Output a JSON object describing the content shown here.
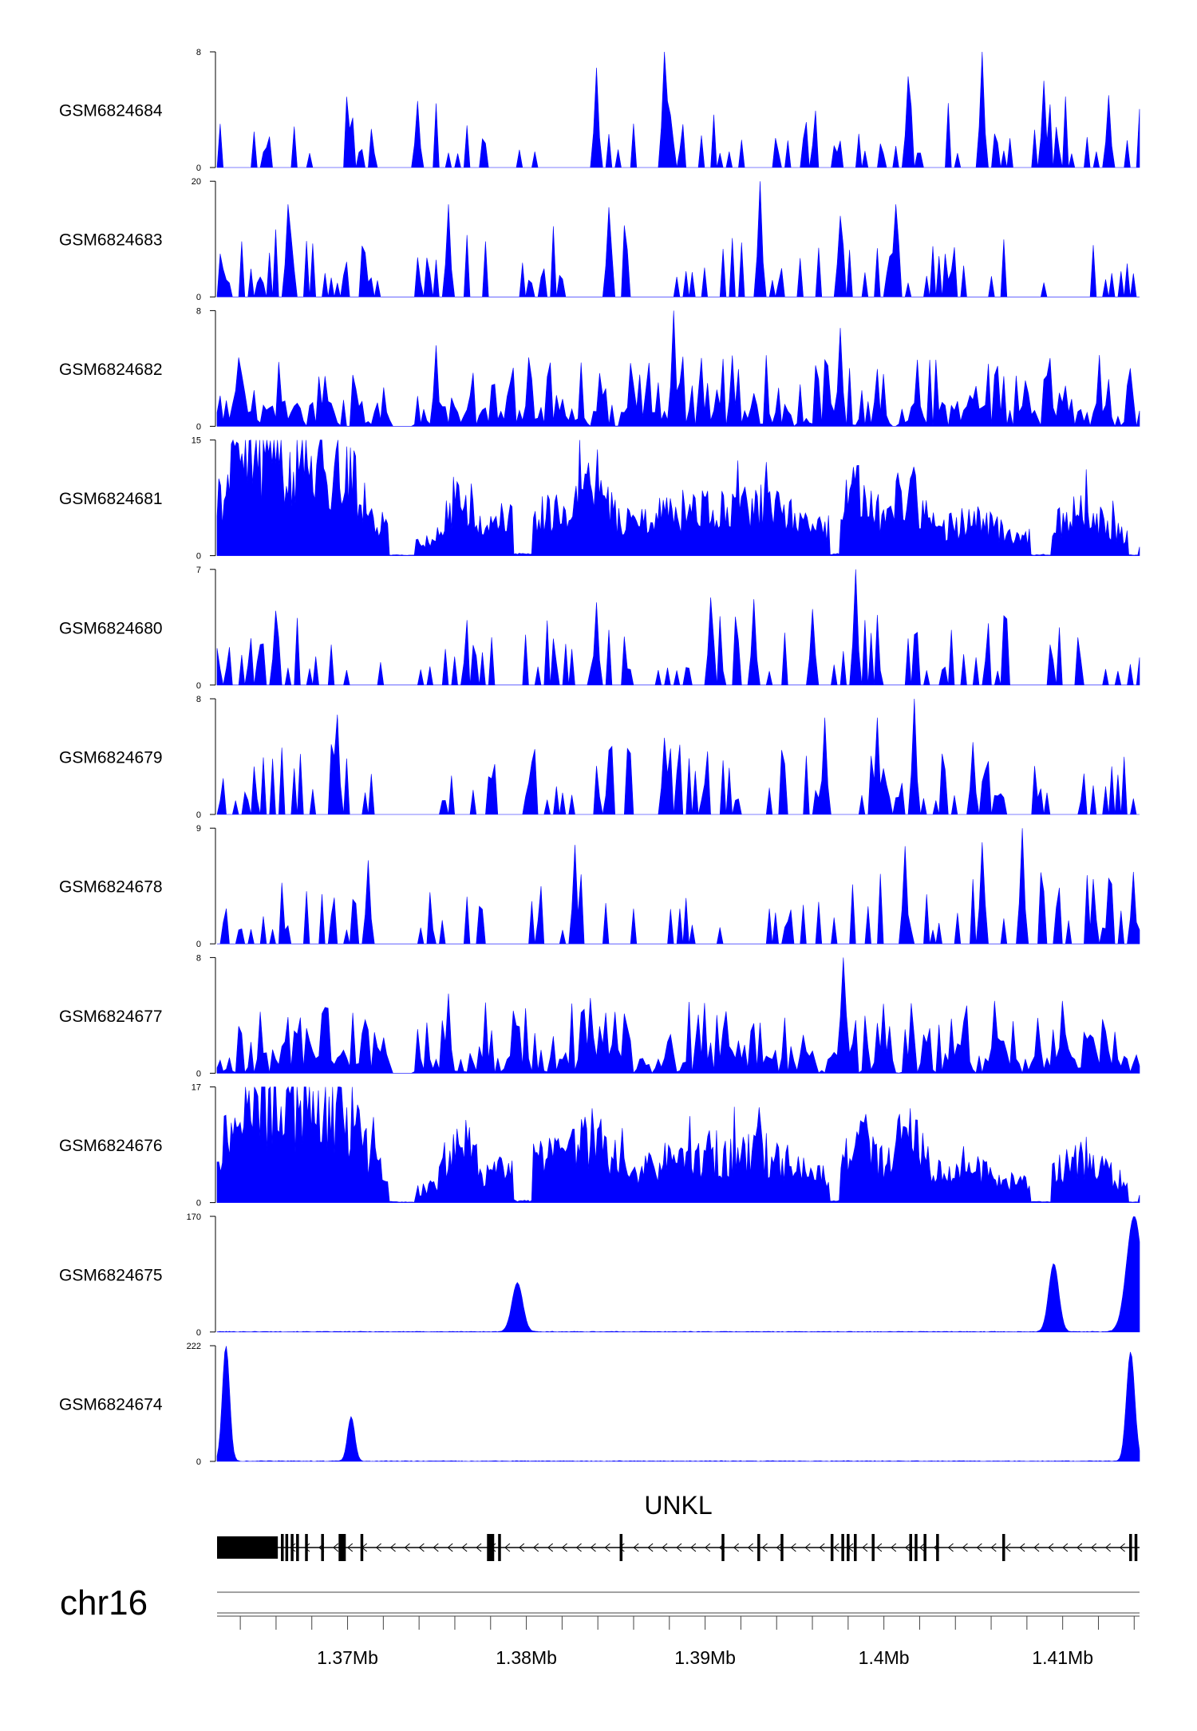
{
  "chart_data": {
    "type": "area",
    "x_range": [
      1362700,
      1414300
    ],
    "tracks": [
      {
        "name": "GSM6824684",
        "ylim": [
          0,
          8
        ],
        "ymax_label": "8",
        "ymin_label": "0",
        "profile": "sparse",
        "seed": 11,
        "peaks": [
          [
            1374000,
            4.6
          ],
          [
            1384000,
            6.9
          ],
          [
            1387700,
            8.0
          ],
          [
            1401300,
            6.3
          ],
          [
            1405500,
            8.0
          ],
          [
            1409000,
            6.0
          ],
          [
            1412600,
            5.0
          ]
        ]
      },
      {
        "name": "GSM6824683",
        "ylim": [
          0,
          20
        ],
        "ymax_label": "20",
        "ymin_label": "0",
        "profile": "sparse",
        "seed": 23,
        "peaks": [
          [
            1366700,
            16.0
          ],
          [
            1375600,
            16.0
          ],
          [
            1384700,
            15.5
          ],
          [
            1393100,
            20.0
          ],
          [
            1397500,
            14.0
          ],
          [
            1400700,
            16.0
          ]
        ]
      },
      {
        "name": "GSM6824682",
        "ylim": [
          0,
          8
        ],
        "ymax_label": "8",
        "ymin_label": "0",
        "profile": "dense",
        "seed": 37,
        "peaks": [
          [
            1375000,
            5.6
          ],
          [
            1388300,
            8.0
          ],
          [
            1391500,
            4.9
          ],
          [
            1397600,
            6.8
          ],
          [
            1401800,
            4.6
          ]
        ]
      },
      {
        "name": "GSM6824681",
        "ylim": [
          0,
          15
        ],
        "ymax_label": "15",
        "ymin_label": "0",
        "profile": "broad",
        "seed": 41,
        "peaks": [
          [
            1365900,
            15.0
          ],
          [
            1364000,
            12.0
          ],
          [
            1369500,
            11.0
          ],
          [
            1384200,
            9.8
          ],
          [
            1398300,
            9.3
          ],
          [
            1401500,
            10.0
          ]
        ]
      },
      {
        "name": "GSM6824680",
        "ylim": [
          0,
          7
        ],
        "ymax_label": "7",
        "ymin_label": "0",
        "profile": "sparse",
        "seed": 53,
        "peaks": [
          [
            1366000,
            4.5
          ],
          [
            1384000,
            5.0
          ],
          [
            1390300,
            5.3
          ],
          [
            1392800,
            5.2
          ],
          [
            1398400,
            7.0
          ],
          [
            1396000,
            4.6
          ]
        ]
      },
      {
        "name": "GSM6824679",
        "ylim": [
          0,
          8
        ],
        "ymax_label": "8",
        "ymin_label": "0",
        "profile": "sparse",
        "seed": 67,
        "peaks": [
          [
            1369500,
            6.9
          ],
          [
            1387700,
            5.3
          ],
          [
            1396700,
            6.7
          ],
          [
            1399600,
            6.7
          ],
          [
            1401700,
            8.0
          ],
          [
            1405000,
            5.0
          ]
        ]
      },
      {
        "name": "GSM6824678",
        "ylim": [
          0,
          9
        ],
        "ymax_label": "9",
        "ymin_label": "0",
        "profile": "sparse",
        "seed": 71,
        "peaks": [
          [
            1371200,
            6.5
          ],
          [
            1382700,
            7.7
          ],
          [
            1401100,
            7.6
          ],
          [
            1405500,
            7.9
          ],
          [
            1407800,
            9.0
          ],
          [
            1414000,
            5.6
          ]
        ]
      },
      {
        "name": "GSM6824677",
        "ylim": [
          0,
          8
        ],
        "ymax_label": "8",
        "ymin_label": "0",
        "profile": "dense",
        "seed": 83,
        "peaks": [
          [
            1375700,
            5.5
          ],
          [
            1383500,
            5.2
          ],
          [
            1397700,
            8.0
          ],
          [
            1400000,
            4.8
          ],
          [
            1406200,
            5.0
          ],
          [
            1410000,
            5.0
          ]
        ]
      },
      {
        "name": "GSM6824676",
        "ylim": [
          0,
          17
        ],
        "ymax_label": "17",
        "ymin_label": "0",
        "profile": "broad",
        "seed": 97,
        "peaks": [
          [
            1366700,
            17.0
          ],
          [
            1364500,
            15.0
          ],
          [
            1369700,
            16.0
          ],
          [
            1393000,
            14.0
          ],
          [
            1399000,
            13.0
          ]
        ]
      },
      {
        "name": "GSM6824675",
        "ylim": [
          0,
          170
        ],
        "ymax_label": "170",
        "ymin_label": "0",
        "profile": "peaks",
        "seed": 101,
        "peaks": [
          [
            1379500,
            72,
            300
          ],
          [
            1409500,
            100,
            280
          ],
          [
            1414000,
            170,
            420
          ]
        ]
      },
      {
        "name": "GSM6824674",
        "ylim": [
          0,
          222
        ],
        "ymax_label": "222",
        "ymin_label": "0",
        "profile": "peaks",
        "seed": 113,
        "peaks": [
          [
            1363200,
            222,
            200
          ],
          [
            1370200,
            85,
            200
          ],
          [
            1413800,
            210,
            230
          ]
        ]
      }
    ],
    "gene": {
      "name": "UNKL",
      "start": 1362700,
      "end": 1414300,
      "strand": "-",
      "thick_block": [
        1362700,
        1366100
      ],
      "exons": [
        1366350,
        1366600,
        1366900,
        1367200,
        1367700,
        1368600,
        1369700,
        1370800,
        1378000,
        1378500,
        1385300,
        1391000,
        1393000,
        1394300,
        1397100,
        1397700,
        1398000,
        1398400,
        1399400,
        1401500,
        1401800,
        1402300,
        1403000,
        1406700,
        1413800,
        1414100
      ],
      "thick_exons": [
        1369700,
        1378000,
        1398100
      ]
    },
    "axis": {
      "chromosome": "chr16",
      "ticks": [
        1370000,
        1380000,
        1390000,
        1400000,
        1410000
      ],
      "tick_labels": [
        "1.37Mb",
        "1.38Mb",
        "1.39Mb",
        "1.4Mb",
        "1.41Mb"
      ],
      "minor_step": 2000
    },
    "fill_color": "#0000ff",
    "line_color": "#000000"
  }
}
